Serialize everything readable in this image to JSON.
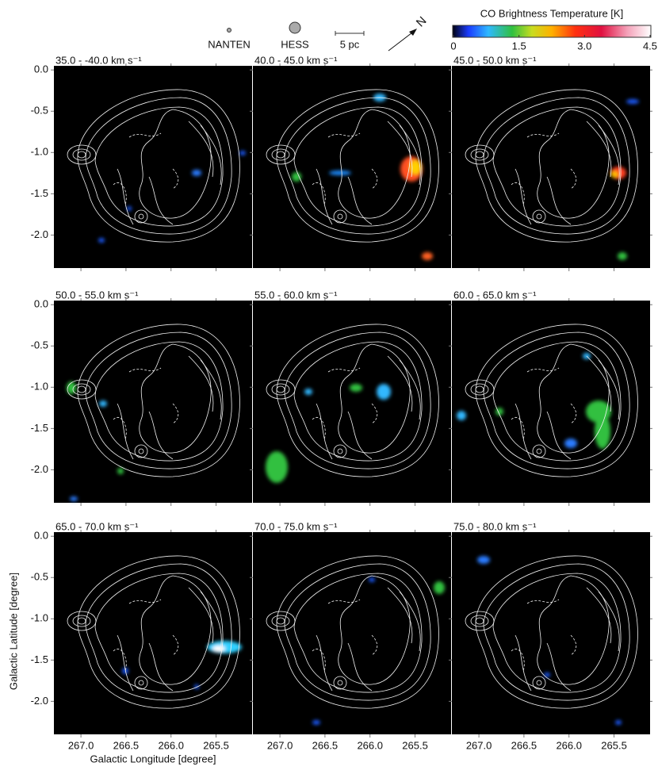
{
  "chart_data": {
    "type": "map",
    "legend": {
      "nanten": "NANTEN",
      "hess": "HESS",
      "scale": "5 pc",
      "north": "N"
    },
    "colorbar": {
      "title": "CO Brightness Temperature [K]",
      "lim": [
        0,
        4.5
      ],
      "ticks": [
        0,
        1.5,
        {
          "value": 3,
          "label": "3.0"
        },
        4.5
      ]
    },
    "xlabel": "Galactic Longitude [degree]",
    "ylabel": "Galactic Latitude [degree]",
    "xlim": [
      267.3,
      265.1
    ],
    "xticks": [
      {
        "value": 267,
        "label": "267.0"
      },
      266.5,
      {
        "value": 266,
        "label": "266.0"
      },
      265.5
    ],
    "ylim": [
      -2.4,
      0.05
    ],
    "yticks": [
      {
        "value": 0,
        "label": "0.0"
      },
      -0.5,
      {
        "value": -1,
        "label": "-1.0"
      },
      -1.5,
      {
        "value": -2,
        "label": "-2.0"
      }
    ],
    "panels": [
      {
        "title": "35.0 -  -40.0 km s⁻¹"
      },
      {
        "title": "40.0 -  45.0 km s⁻¹"
      },
      {
        "title": "45.0 -  50.0 km s⁻¹"
      },
      {
        "title": "50.0 -  55.0 km s⁻¹"
      },
      {
        "title": "55.0 -  60.0 km s⁻¹"
      },
      {
        "title": "60.0 -  65.0 km s⁻¹"
      },
      {
        "title": "65.0 -  70.0 km s⁻¹"
      },
      {
        "title": "70.0 -  75.0 km s⁻¹"
      },
      {
        "title": "75.0 -  80.0 km s⁻¹"
      }
    ]
  }
}
